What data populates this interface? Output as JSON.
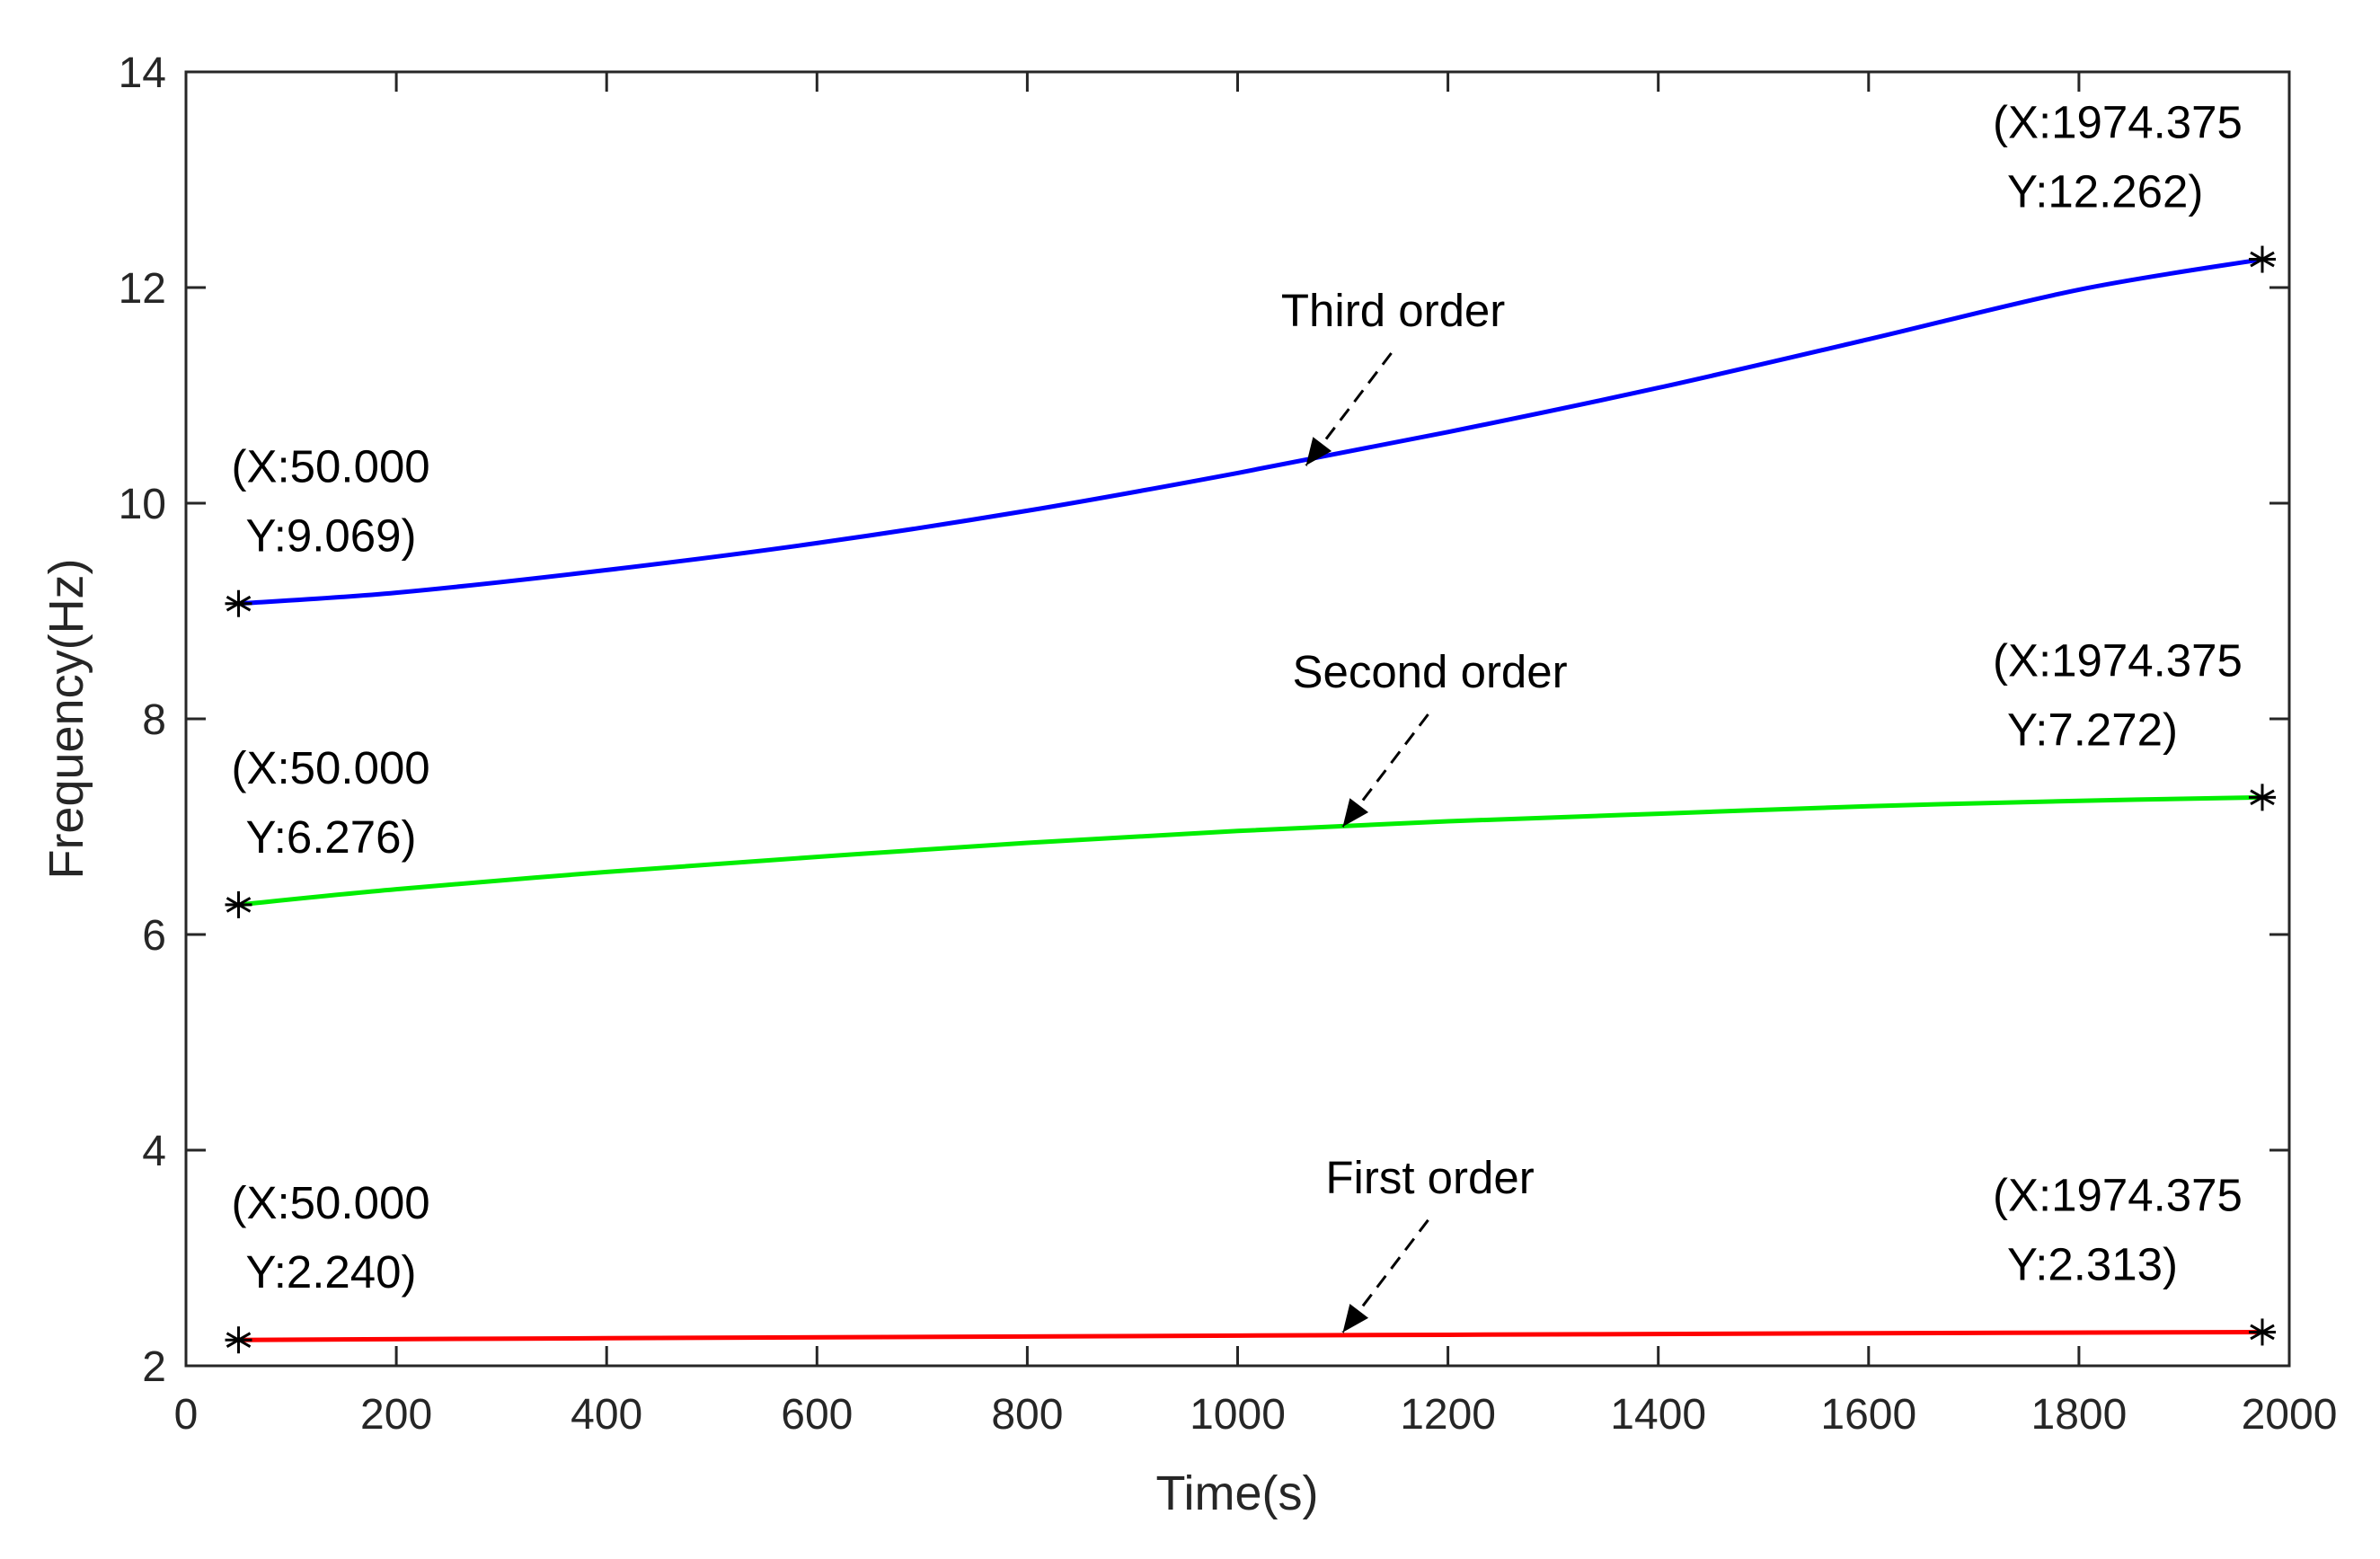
{
  "chart_data": {
    "type": "line",
    "title": "",
    "xlabel": "Time(s)",
    "ylabel": "Frequency(Hz)",
    "xlim": [
      0,
      2000
    ],
    "ylim": [
      2,
      14
    ],
    "xticks": [
      0,
      200,
      400,
      600,
      800,
      1000,
      1200,
      1400,
      1600,
      1800,
      2000
    ],
    "yticks": [
      2,
      4,
      6,
      8,
      10,
      12,
      14
    ],
    "xtick_labels": [
      "0",
      "200",
      "400",
      "600",
      "800",
      "1000",
      "1200",
      "1400",
      "1600",
      "1800",
      "2000"
    ],
    "ytick_labels": [
      "2",
      "4",
      "6",
      "8",
      "10",
      "12",
      "14"
    ],
    "grid": false,
    "series": [
      {
        "name": "Third order",
        "color": "#0000ff",
        "x": [
          50,
          200,
          400,
          600,
          800,
          1000,
          1200,
          1400,
          1600,
          1800,
          1974.375
        ],
        "y": [
          9.069,
          9.17,
          9.38,
          9.63,
          9.93,
          10.28,
          10.66,
          11.07,
          11.52,
          11.98,
          12.262
        ]
      },
      {
        "name": "Second order",
        "color": "#00ee00",
        "x": [
          50,
          200,
          400,
          600,
          800,
          1000,
          1200,
          1400,
          1600,
          1800,
          1974.375
        ],
        "y": [
          6.276,
          6.42,
          6.58,
          6.72,
          6.85,
          6.96,
          7.05,
          7.12,
          7.19,
          7.24,
          7.272
        ]
      },
      {
        "name": "First order",
        "color": "#ff0000",
        "x": [
          50,
          400,
          800,
          1200,
          1600,
          1974.375
        ],
        "y": [
          2.24,
          2.256,
          2.272,
          2.288,
          2.302,
          2.313
        ]
      }
    ],
    "annotations": [
      {
        "text": "Third order",
        "arrow_to": [
          1065,
          10.35
        ]
      },
      {
        "text": "Second order",
        "arrow_to": [
          1100,
          7.0
        ]
      },
      {
        "text": "First order",
        "arrow_to": [
          1100,
          2.31
        ]
      }
    ],
    "datatips": [
      {
        "point": [
          50,
          9.069
        ],
        "lines": [
          "(X:50.000",
          "Y:9.069)"
        ]
      },
      {
        "point": [
          1974.375,
          12.262
        ],
        "lines": [
          "(X:1974.375",
          "Y:12.262)"
        ]
      },
      {
        "point": [
          50,
          6.276
        ],
        "lines": [
          "(X:50.000",
          "Y:6.276)"
        ]
      },
      {
        "point": [
          1974.375,
          7.272
        ],
        "lines": [
          "(X:1974.375",
          "Y:7.272)"
        ]
      },
      {
        "point": [
          50,
          2.24
        ],
        "lines": [
          "(X:50.000",
          "Y:2.240)"
        ]
      },
      {
        "point": [
          1974.375,
          2.313
        ],
        "lines": [
          "(X:1974.375",
          "Y:2.313)"
        ]
      }
    ]
  }
}
